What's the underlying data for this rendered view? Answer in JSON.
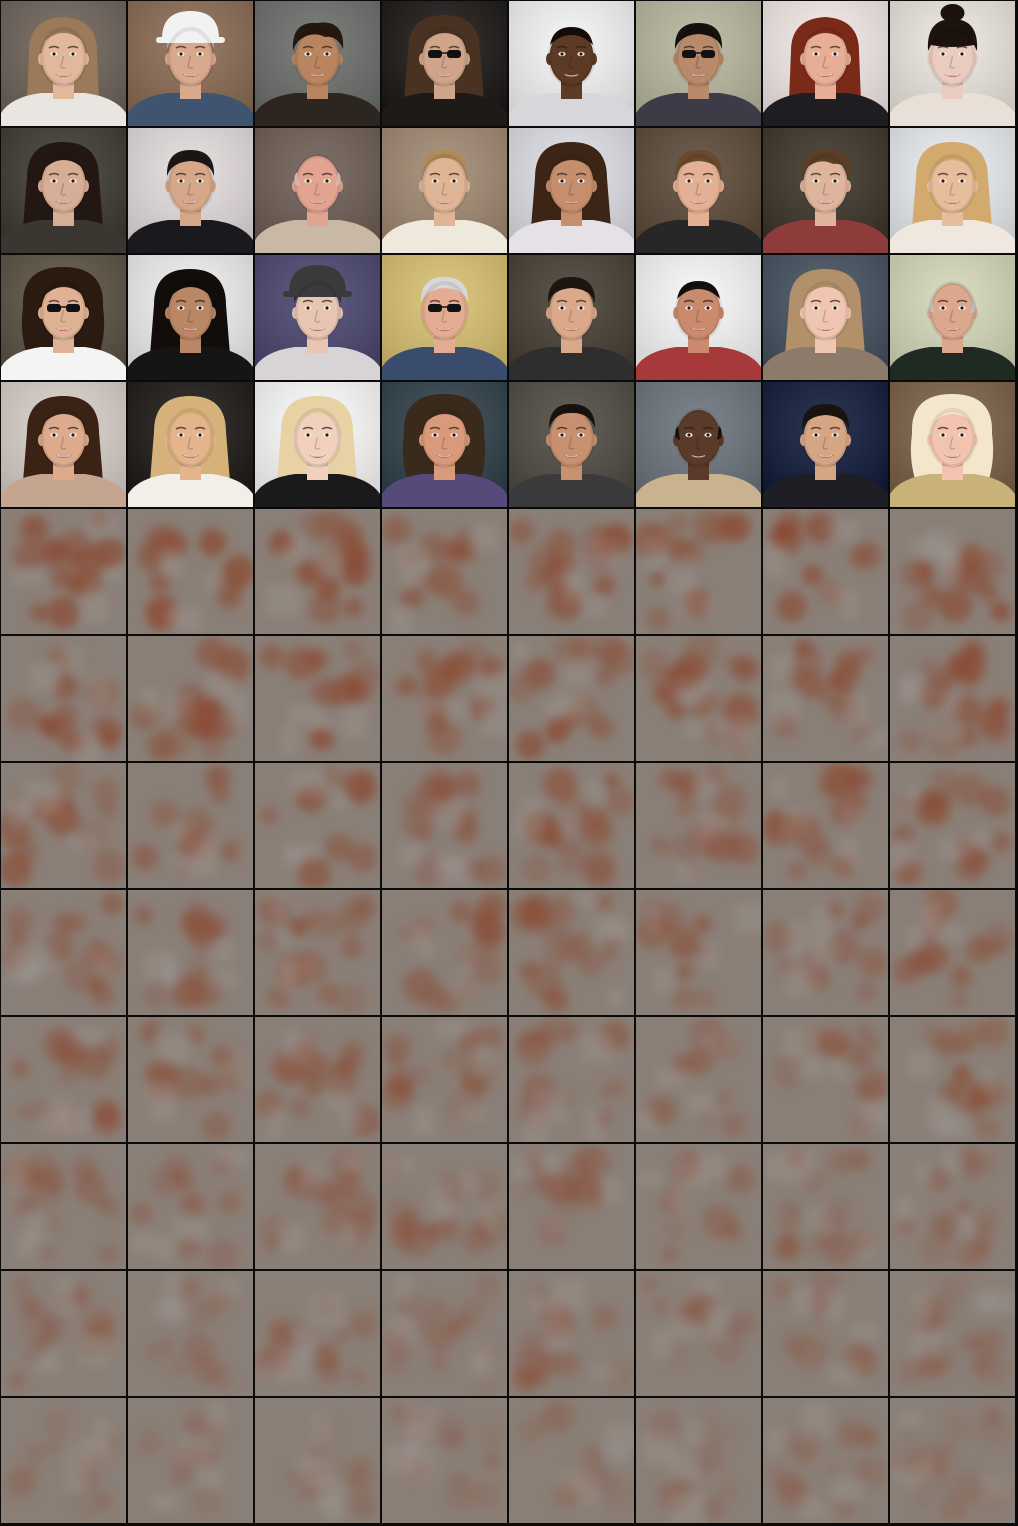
{
  "grid": {
    "columns": 8,
    "rows": 12,
    "photo_rows": 4,
    "noise_rows": 8
  },
  "colors": {
    "background": "#000000",
    "noise_base": "#8a7f77",
    "noise_blob": "#8b4a32"
  },
  "faces": [
    {
      "bg": "#6d6258",
      "skin": "#e2b89c",
      "hair": "#9a7a58",
      "shirt": "#e9e6e1",
      "hairStyle": "bob",
      "glasses": false,
      "hat": null
    },
    {
      "bg": "#8a6a52",
      "skin": "#d9a98d",
      "hair": "#a8a8a8",
      "shirt": "#3e5470",
      "hairStyle": "short",
      "glasses": false,
      "hat": "#f2f2f2"
    },
    {
      "bg": "#6b6e6b",
      "skin": "#b98460",
      "hair": "#241710",
      "shirt": "#2c2520",
      "hairStyle": "messy",
      "glasses": false,
      "hat": null
    },
    {
      "bg": "#1a1715",
      "skin": "#cfa48a",
      "hair": "#4a3222",
      "shirt": "#1e1a18",
      "hairStyle": "long",
      "glasses": true,
      "hat": null
    },
    {
      "bg": "#f4f4f4",
      "skin": "#5c3a25",
      "hair": "#150c08",
      "shirt": "#d8d6da",
      "hairStyle": "buzz",
      "glasses": false,
      "hat": null
    },
    {
      "bg": "#b7b69e",
      "skin": "#b8896a",
      "hair": "#16110e",
      "shirt": "#3b3c48",
      "hairStyle": "short",
      "glasses": true,
      "hat": null
    },
    {
      "bg": "#f1e9e6",
      "skin": "#e7ae95",
      "hair": "#7b2a1a",
      "shirt": "#1e1e22",
      "hairStyle": "bob",
      "glasses": false,
      "hat": null
    },
    {
      "bg": "#ebe6de",
      "skin": "#eacbbf",
      "hair": "#1c120e",
      "shirt": "#e8e0d6",
      "hairStyle": "bangs",
      "glasses": false,
      "hat": null
    },
    {
      "bg": "#3d3a32",
      "skin": "#d6ad95",
      "hair": "#231712",
      "shirt": "#3a3630",
      "hairStyle": "long",
      "glasses": false,
      "hat": null
    },
    {
      "bg": "#e4dcdc",
      "skin": "#d5a688",
      "hair": "#1d1713",
      "shirt": "#1a1a1e",
      "hairStyle": "short",
      "glasses": false,
      "hat": null
    },
    {
      "bg": "#6d5d55",
      "skin": "#e2a390",
      "hair": "#d9c9b8",
      "shirt": "#c9b9a4",
      "hairStyle": "bald",
      "glasses": false,
      "hat": null
    },
    {
      "bg": "#9f8870",
      "skin": "#e0b595",
      "hair": "#b08a55",
      "shirt": "#efe8dc",
      "hairStyle": "pulled",
      "glasses": false,
      "hat": null
    },
    {
      "bg": "#dedfe5",
      "skin": "#c58f6e",
      "hair": "#3c2516",
      "shirt": "#e6e1e6",
      "hairStyle": "long",
      "glasses": false,
      "hat": null
    },
    {
      "bg": "#5b4938",
      "skin": "#e3b094",
      "hair": "#6a4a2e",
      "shirt": "#272728",
      "hairStyle": "short",
      "glasses": false,
      "hat": null
    },
    {
      "bg": "#3b3429",
      "skin": "#dfb49c",
      "hair": "#5a3e27",
      "shirt": "#8e3b3c",
      "hairStyle": "messy",
      "glasses": false,
      "hat": null
    },
    {
      "bg": "#e9ecef",
      "skin": "#e8bd9b",
      "hair": "#d2aa6e",
      "shirt": "#f0e8de",
      "hairStyle": "long",
      "glasses": false,
      "hat": null
    },
    {
      "bg": "#5b5143",
      "skin": "#dfb295",
      "hair": "#2a1a10",
      "shirt": "#f4f4f4",
      "hairStyle": "curly",
      "glasses": true,
      "hat": null
    },
    {
      "bg": "#eeeeee",
      "skin": "#b98766",
      "hair": "#120c0a",
      "shirt": "#151515",
      "hairStyle": "long",
      "glasses": false,
      "hat": null
    },
    {
      "bg": "#4a4670",
      "skin": "#e8c4b3",
      "hair": "#2a2a2a",
      "shirt": "#d8d4d6",
      "hairStyle": "short",
      "glasses": false,
      "hat": "#3a3a3a"
    },
    {
      "bg": "#d8c070",
      "skin": "#e4ad93",
      "hair": "#d8d8d8",
      "shirt": "#3a4c6d",
      "hairStyle": "short",
      "glasses": true,
      "hat": null
    },
    {
      "bg": "#463e33",
      "skin": "#d9a98a",
      "hair": "#1e1510",
      "shirt": "#2e2e2e",
      "hairStyle": "short",
      "glasses": false,
      "hat": null
    },
    {
      "bg": "#f7f7f7",
      "skin": "#c98a6d",
      "hair": "#151010",
      "shirt": "#a8393b",
      "hairStyle": "buzz",
      "glasses": false,
      "hat": null
    },
    {
      "bg": "#43505e",
      "skin": "#f0c6b2",
      "hair": "#b2906a",
      "shirt": "#8e7a6a",
      "hairStyle": "long",
      "glasses": false,
      "hat": null
    },
    {
      "bg": "#d4d8b8",
      "skin": "#dba88e",
      "hair": "#c9c9c9",
      "shirt": "#1e2a22",
      "hairStyle": "bald",
      "glasses": false,
      "hat": null
    },
    {
      "bg": "#d8cfc8",
      "skin": "#ddaa8e",
      "hair": "#3a2214",
      "shirt": "#c4a590",
      "hairStyle": "long",
      "glasses": false,
      "hat": null
    },
    {
      "bg": "#1c1915",
      "skin": "#e4b48c",
      "hair": "#d6b27a",
      "shirt": "#f2efe8",
      "hairStyle": "long",
      "glasses": false,
      "hat": null
    },
    {
      "bg": "#fbfbfb",
      "skin": "#f1d1bd",
      "hair": "#e8d2a4",
      "shirt": "#1a1a1a",
      "hairStyle": "long",
      "glasses": false,
      "hat": null
    },
    {
      "bg": "#2f3f4a",
      "skin": "#d89a7b",
      "hair": "#3a2a1c",
      "shirt": "#564a7a",
      "hairStyle": "curly",
      "glasses": false,
      "hat": null
    },
    {
      "bg": "#4e4a42",
      "skin": "#c7916f",
      "hair": "#18110c",
      "shirt": "#3a3a3d",
      "hairStyle": "slick",
      "glasses": false,
      "hat": null
    },
    {
      "bg": "#6c737c",
      "skin": "#5a3b2a",
      "hair": "#1a1210",
      "shirt": "#c9b38e",
      "hairStyle": "bald",
      "glasses": false,
      "hat": null
    },
    {
      "bg": "#0f1a3a",
      "skin": "#d6a684",
      "hair": "#1a1410",
      "shirt": "#1e1e24",
      "hairStyle": "short",
      "glasses": false,
      "hat": null
    },
    {
      "bg": "#7a6048",
      "skin": "#f2c4b0",
      "hair": "#f3e6cc",
      "shirt": "#c9b27a",
      "hairStyle": "curly",
      "glasses": false,
      "hat": null
    }
  ]
}
